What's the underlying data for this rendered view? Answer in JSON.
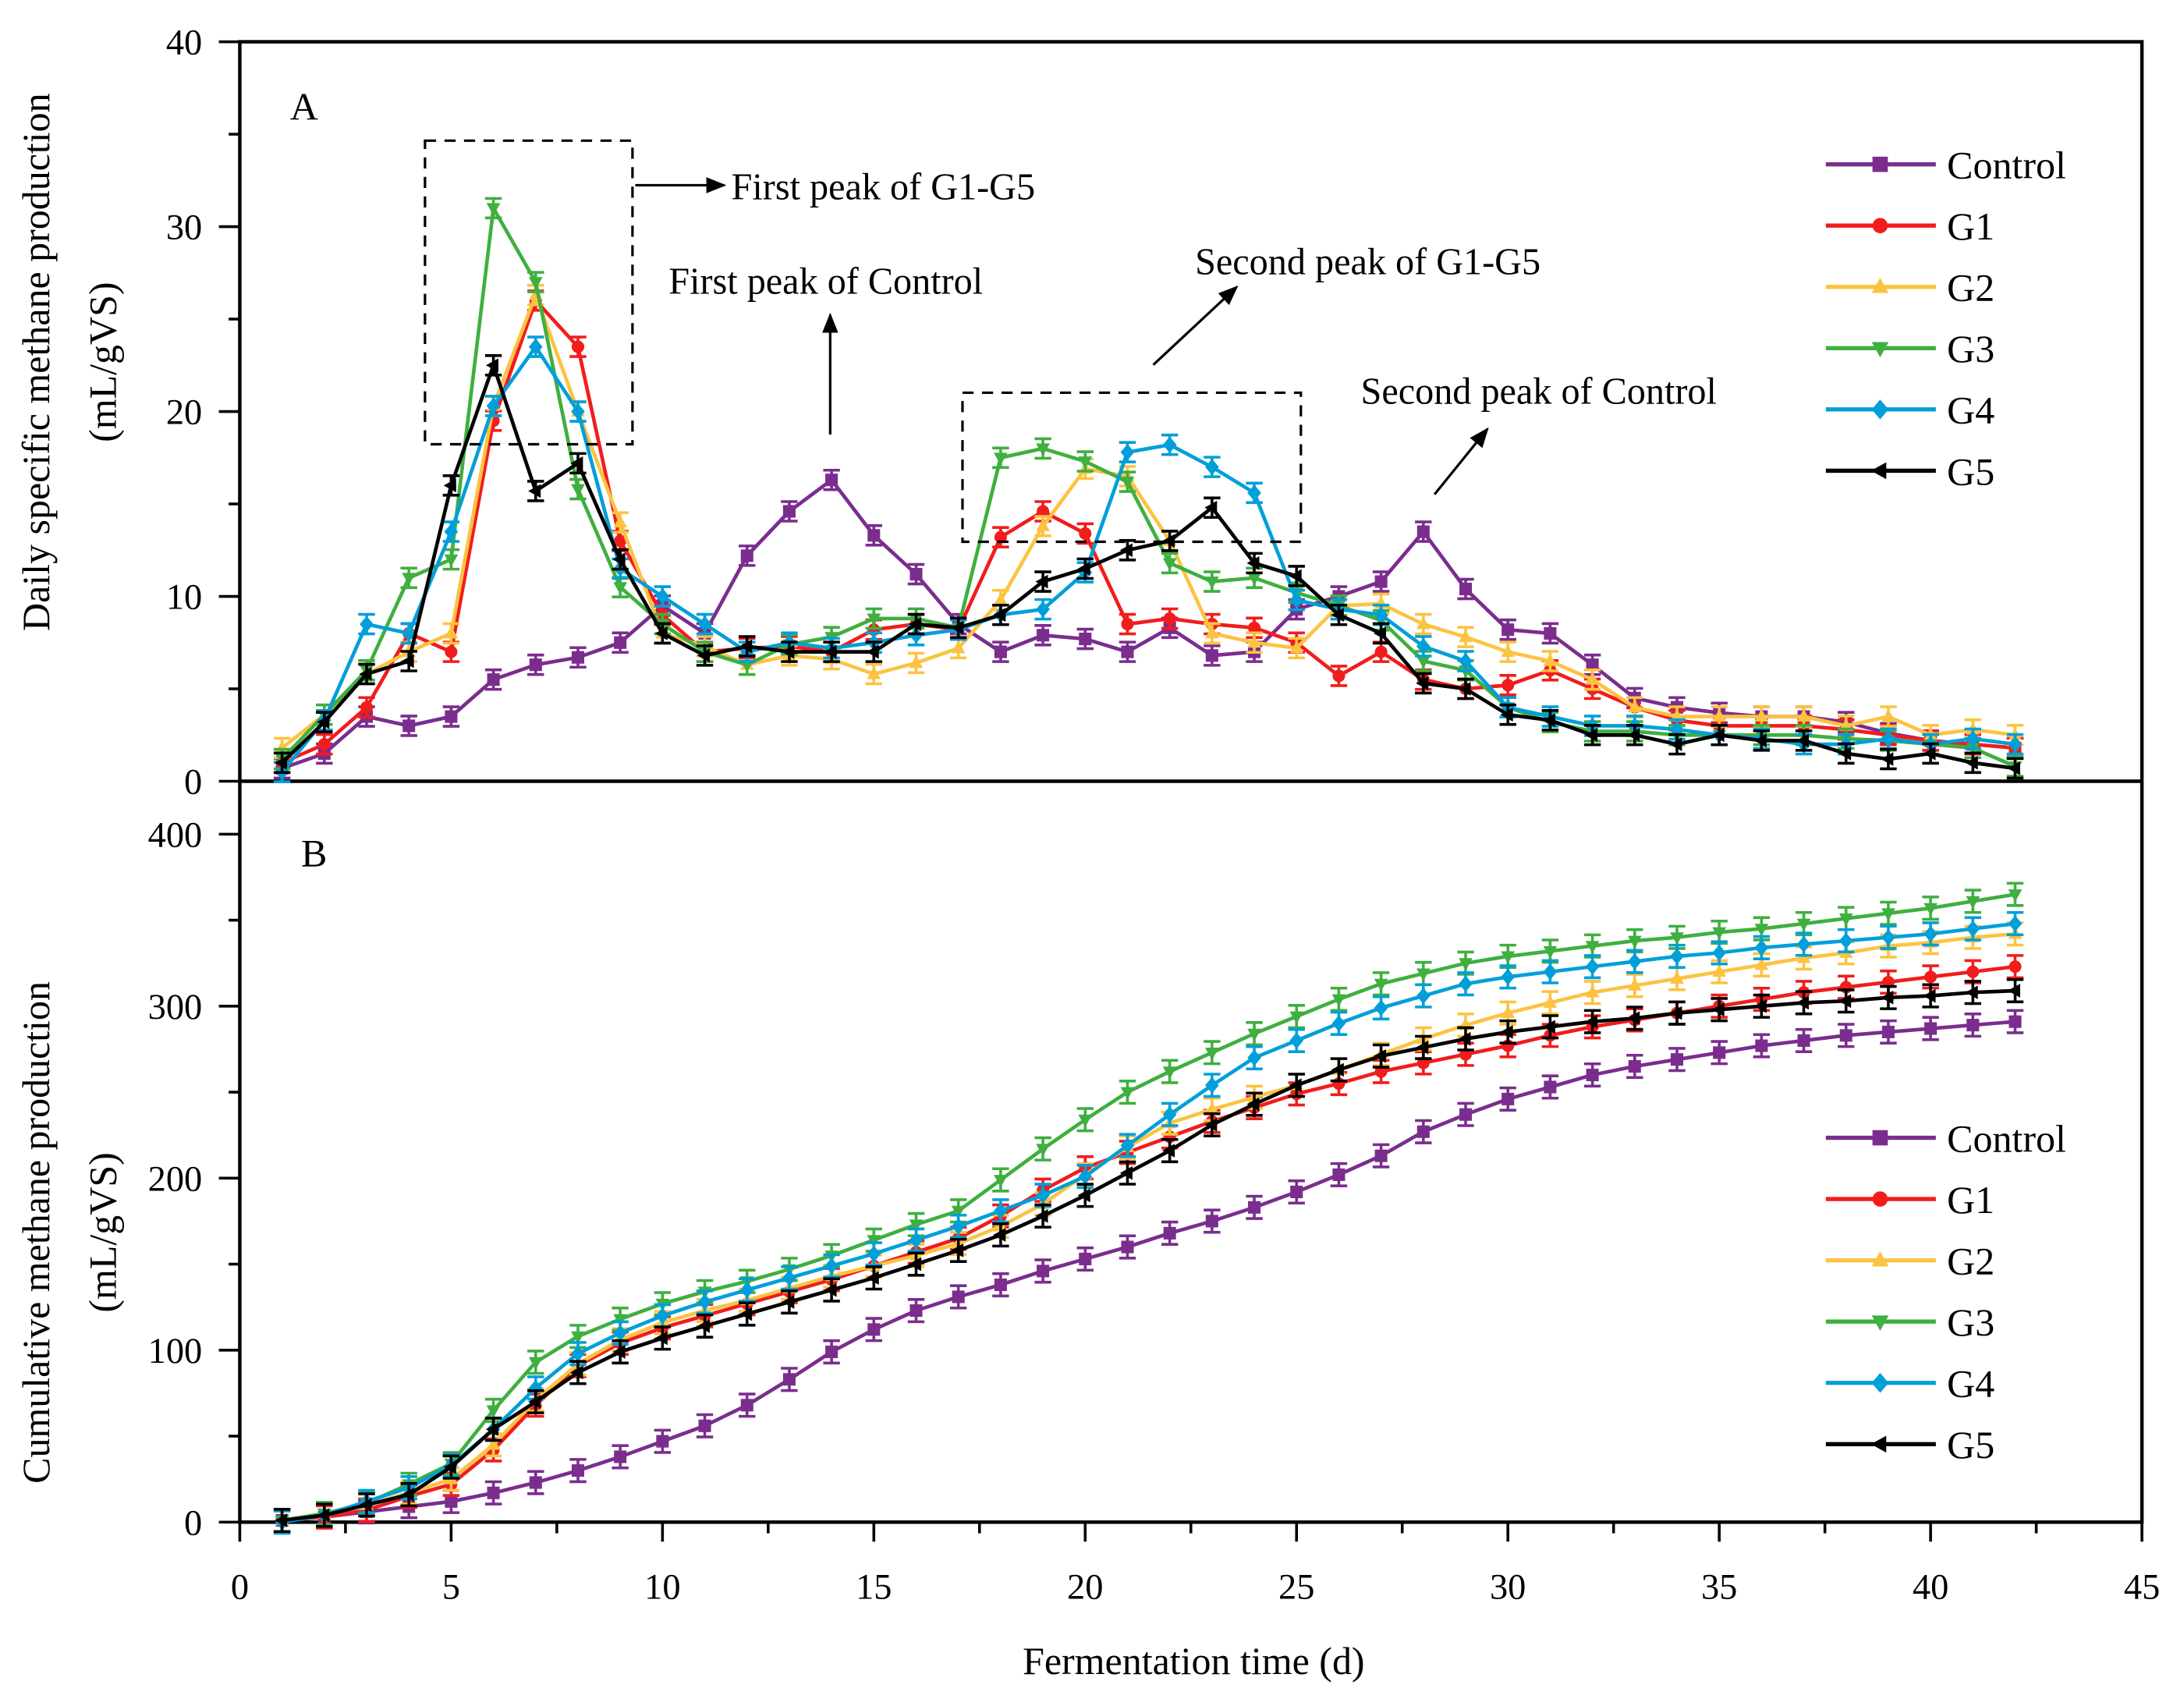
{
  "chart_data": [
    {
      "type": "line",
      "panel_label": "A",
      "title": "",
      "xlabel": "Fermentation time (d)",
      "ylabel_line1": "Daily specific methane production",
      "ylabel_line2": "(mL/gVS)",
      "xlim": [
        0,
        45
      ],
      "ylim": [
        0,
        40
      ],
      "xticks": [
        "0",
        "5",
        "10",
        "15",
        "20",
        "25",
        "30",
        "35",
        "40",
        "45"
      ],
      "yticks": [
        "0",
        "10",
        "20",
        "30",
        "40"
      ],
      "legend_position": "top-right",
      "x": [
        1,
        2,
        3,
        4,
        5,
        6,
        7,
        8,
        9,
        10,
        11,
        12,
        13,
        14,
        15,
        16,
        17,
        18,
        19,
        20,
        21,
        22,
        23,
        24,
        25,
        26,
        27,
        28,
        29,
        30,
        31,
        32,
        33,
        34,
        35,
        36,
        37,
        38,
        39,
        40,
        41,
        42
      ],
      "series": [
        {
          "name": "Control",
          "color": "#7B2D8E",
          "marker": "square",
          "values": [
            0.7,
            1.5,
            3.5,
            3,
            3.5,
            5.5,
            6.3,
            6.7,
            7.5,
            9.5,
            8,
            12.2,
            14.6,
            16.3,
            13.3,
            11.2,
            8.5,
            7,
            7.9,
            7.7,
            7,
            8.3,
            6.8,
            7,
            9.3,
            10,
            10.8,
            13.5,
            10.4,
            8.2,
            8,
            6.3,
            4.5,
            4,
            3.7,
            3.5,
            3.5,
            3.2,
            2.6,
            2.2,
            2,
            1.8
          ]
        },
        {
          "name": "G1",
          "color": "#F21C1C",
          "marker": "circle",
          "values": [
            1,
            2,
            4,
            8,
            7,
            19.5,
            26,
            23.5,
            13,
            9,
            7,
            7.2,
            7.3,
            7,
            8.2,
            8.5,
            8.2,
            13.2,
            14.6,
            13.4,
            8.5,
            8.8,
            8.5,
            8.3,
            7.5,
            5.7,
            7,
            5.5,
            5,
            5.2,
            6,
            5,
            4,
            3.3,
            3,
            3,
            3,
            2.8,
            2.5,
            2.2,
            2,
            1.8
          ]
        },
        {
          "name": "G2",
          "color": "#FCC341",
          "marker": "triangle-up",
          "values": [
            1.8,
            3.6,
            5.8,
            7,
            8,
            20.3,
            26.3,
            20,
            14,
            8,
            7.3,
            6.3,
            6.8,
            6.6,
            5.8,
            6.4,
            7.2,
            9.8,
            13.8,
            16.9,
            16.5,
            13,
            8,
            7.5,
            7.2,
            9.5,
            9.6,
            8.5,
            7.8,
            7,
            6.5,
            5.5,
            4,
            3.5,
            3.5,
            3.5,
            3.5,
            3,
            3.5,
            2.5,
            2.8,
            2.5
          ]
        },
        {
          "name": "G3",
          "color": "#3FAF3F",
          "marker": "triangle-down",
          "values": [
            1.2,
            3.6,
            6,
            11,
            12,
            31,
            27,
            15.8,
            10.5,
            8.5,
            7,
            6.3,
            7.4,
            7.8,
            8.8,
            8.8,
            8.3,
            17.5,
            18,
            17.3,
            16.2,
            11.8,
            10.8,
            11,
            10.2,
            9.5,
            8.7,
            6.5,
            6,
            4,
            3.2,
            2.7,
            2.7,
            2.5,
            2.5,
            2.5,
            2.5,
            2.3,
            2.2,
            2,
            1.8,
            0.8
          ]
        },
        {
          "name": "G4",
          "color": "#009FD9",
          "marker": "diamond",
          "values": [
            0.5,
            3.3,
            8.5,
            8,
            13.5,
            20.3,
            23.5,
            20,
            11.5,
            10,
            8.5,
            7,
            7.5,
            7.2,
            7.5,
            7.9,
            8.2,
            9,
            9.3,
            11.3,
            17.8,
            18.2,
            17,
            15.6,
            9.8,
            9.3,
            9,
            7.3,
            6.5,
            4,
            3.5,
            3,
            3,
            2.8,
            2.5,
            2.3,
            2,
            2,
            2.3,
            2,
            2.3,
            2
          ]
        },
        {
          "name": "G5",
          "color": "#000000",
          "marker": "triangle-left",
          "values": [
            1,
            3.2,
            5.8,
            6.5,
            16,
            22.5,
            15.7,
            17.2,
            12,
            8,
            6.8,
            7.3,
            7,
            7,
            7,
            8.5,
            8.3,
            9,
            10.8,
            11.5,
            12.5,
            13,
            14.8,
            11.8,
            11.1,
            9,
            8,
            5.3,
            5,
            3.6,
            3.3,
            2.5,
            2.5,
            2,
            2.5,
            2.2,
            2.2,
            1.5,
            1.2,
            1.5,
            1,
            0.7
          ]
        }
      ],
      "annotations": [
        "First peak of G1-G5",
        "First peak of Control",
        "Second peak of G1-G5",
        "Second peak of Control"
      ]
    },
    {
      "type": "line",
      "panel_label": "B",
      "title": "",
      "xlabel": "Fermentation time (d)",
      "ylabel_line1": "Cumulative methane production",
      "ylabel_line2": "(mL/gVS)",
      "xlim": [
        0,
        45
      ],
      "ylim": [
        0,
        400
      ],
      "yticks": [
        "0",
        "100",
        "200",
        "300",
        "400"
      ],
      "legend_position": "bottom-right",
      "x": [
        1,
        2,
        3,
        4,
        5,
        6,
        7,
        8,
        9,
        10,
        11,
        12,
        13,
        14,
        15,
        16,
        17,
        18,
        19,
        20,
        21,
        22,
        23,
        24,
        25,
        26,
        27,
        28,
        29,
        30,
        31,
        32,
        33,
        34,
        35,
        36,
        37,
        38,
        39,
        40,
        41,
        42
      ],
      "series": [
        {
          "name": "Control",
          "color": "#7B2D8E",
          "marker": "square",
          "values": [
            1,
            3,
            6,
            9,
            12,
            17,
            23,
            30,
            38,
            47,
            56,
            68,
            83,
            99,
            112,
            123,
            131,
            138,
            146,
            153,
            160,
            168,
            175,
            183,
            192,
            202,
            213,
            227,
            237,
            246,
            253,
            260,
            265,
            269,
            273,
            277,
            280,
            283,
            285,
            287,
            289,
            291
          ]
        },
        {
          "name": "G1",
          "color": "#F21C1C",
          "marker": "circle",
          "values": [
            1,
            3,
            7,
            15,
            22,
            42,
            68,
            91,
            104,
            113,
            120,
            127,
            134,
            141,
            149,
            157,
            165,
            178,
            193,
            206,
            215,
            224,
            233,
            241,
            249,
            255,
            262,
            267,
            272,
            277,
            283,
            288,
            292,
            296,
            300,
            304,
            308,
            311,
            314,
            317,
            320,
            323
          ]
        },
        {
          "name": "G2",
          "color": "#FCC341",
          "marker": "triangle-up",
          "values": [
            1,
            5,
            10,
            17,
            25,
            45,
            71,
            92,
            106,
            116,
            123,
            129,
            136,
            143,
            149,
            155,
            162,
            172,
            185,
            202,
            218,
            232,
            240,
            247,
            254,
            263,
            272,
            281,
            289,
            296,
            302,
            308,
            312,
            316,
            320,
            324,
            328,
            331,
            335,
            337,
            340,
            342
          ]
        },
        {
          "name": "G3",
          "color": "#3FAF3F",
          "marker": "triangle-down",
          "values": [
            1,
            5,
            11,
            22,
            34,
            65,
            93,
            108,
            118,
            127,
            134,
            140,
            147,
            155,
            164,
            173,
            181,
            199,
            217,
            234,
            250,
            262,
            273,
            284,
            294,
            304,
            313,
            319,
            325,
            329,
            332,
            335,
            338,
            340,
            343,
            345,
            348,
            351,
            354,
            357,
            361,
            365
          ]
        },
        {
          "name": "G4",
          "color": "#009FD9",
          "marker": "diamond",
          "values": [
            0,
            4,
            12,
            20,
            33,
            54,
            78,
            98,
            110,
            120,
            128,
            135,
            142,
            149,
            156,
            164,
            172,
            181,
            190,
            201,
            219,
            237,
            254,
            270,
            280,
            290,
            299,
            306,
            313,
            317,
            320,
            323,
            326,
            329,
            331,
            334,
            336,
            338,
            340,
            342,
            345,
            348
          ]
        },
        {
          "name": "G5",
          "color": "#000000",
          "marker": "triangle-left",
          "values": [
            1,
            4,
            10,
            16,
            32,
            54,
            70,
            87,
            99,
            107,
            114,
            121,
            128,
            135,
            142,
            150,
            158,
            167,
            178,
            190,
            203,
            216,
            231,
            243,
            254,
            263,
            271,
            276,
            281,
            285,
            288,
            291,
            293,
            296,
            298,
            300,
            302,
            303,
            305,
            306,
            308,
            309
          ]
        }
      ]
    }
  ]
}
